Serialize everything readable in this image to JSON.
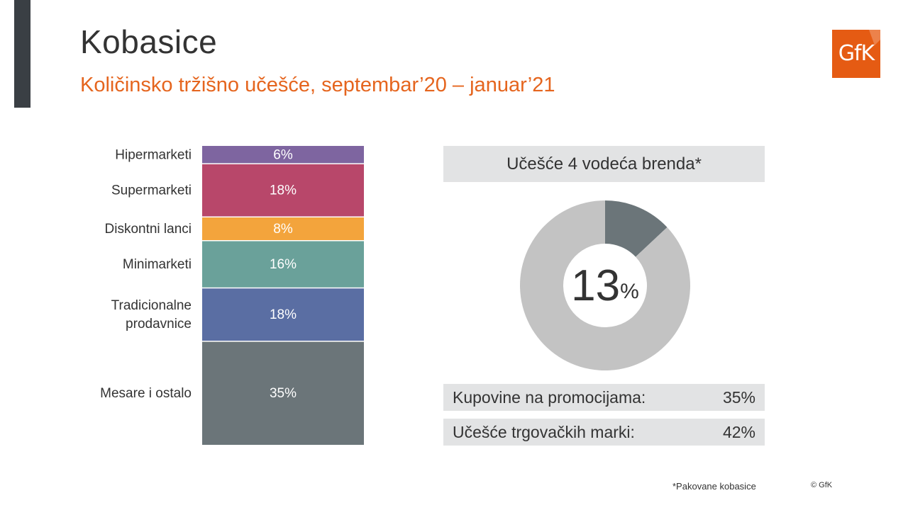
{
  "header": {
    "title": "Kobasice",
    "subtitle": "Količinsko tržišno učešće, septembar’20 – januar’21",
    "logo_text": "GfK"
  },
  "colors": {
    "accent": "#e5651e",
    "accent_bar": "#3a3f44",
    "panel": "#e2e3e4",
    "donut_highlight": "#6b7579",
    "donut_rest": "#c3c3c3"
  },
  "chart_data": [
    {
      "type": "bar",
      "stacked": true,
      "orientation": "vertical",
      "categories": [
        "Hipermarketi",
        "Supermarketi",
        "Diskontni lanci",
        "Minimarketi",
        "Tradicionalne prodavnice",
        "Mesare i ostalo"
      ],
      "category_lines": [
        [
          "Hipermarketi"
        ],
        [
          "Supermarketi"
        ],
        [
          "Diskontni lanci"
        ],
        [
          "Minimarketi"
        ],
        [
          "Tradicionalne",
          "prodavnice"
        ],
        [
          "Mesare i ostalo"
        ]
      ],
      "values": [
        6,
        18,
        8,
        16,
        18,
        35
      ],
      "labels": [
        "6%",
        "18%",
        "8%",
        "16%",
        "18%",
        "35%"
      ],
      "colors": [
        "#7e65a0",
        "#b8476a",
        "#f3a43c",
        "#6aa19a",
        "#5a6ea3",
        "#6b7579"
      ],
      "unit": "%"
    },
    {
      "type": "pie",
      "donut": true,
      "title": "Učešće 4 vodeća brenda*",
      "values": [
        13,
        87
      ],
      "center_value": "13",
      "center_unit": "%",
      "colors": [
        "#6b7579",
        "#c3c3c3"
      ]
    }
  ],
  "stats": [
    {
      "label": "Kupovine na promocijama:",
      "value": "35%"
    },
    {
      "label": "Učešće trgovačkih marki:",
      "value": "42%"
    }
  ],
  "footer": {
    "footnote": "*Pakovane kobasice",
    "copyright": "© GfK"
  }
}
